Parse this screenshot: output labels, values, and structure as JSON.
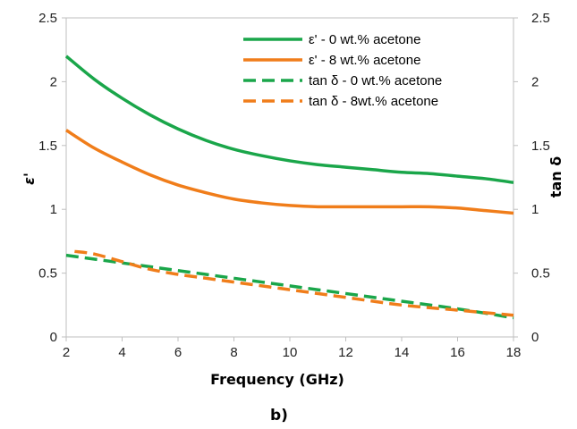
{
  "chart_data": {
    "type": "line",
    "panel_label": "b)",
    "xlabel": "Frequency (GHz)",
    "ylabel_left": "ε'",
    "ylabel_right": "tan δ",
    "xlim": [
      2,
      18
    ],
    "ylim_left": [
      0,
      2.5
    ],
    "ylim_right": [
      0,
      2.5
    ],
    "x_ticks": [
      "2",
      "4",
      "6",
      "8",
      "10",
      "12",
      "14",
      "16",
      "18"
    ],
    "y_ticks_left": [
      "0",
      "0.5",
      "1",
      "1.5",
      "2",
      "2.5"
    ],
    "y_ticks_right": [
      "0",
      "0.5",
      "1",
      "1.5",
      "2",
      "2.5"
    ],
    "grid": false,
    "legend_position": "top-right",
    "colors": {
      "green": "#1aa64a",
      "orange": "#f07d1a"
    },
    "series": [
      {
        "name": "ε' - 0 wt.% acetone",
        "axis": "left",
        "color": "#1aa64a",
        "dash": "solid",
        "x": [
          2,
          3,
          4,
          5,
          6,
          7,
          8,
          9,
          10,
          11,
          12,
          13,
          14,
          15,
          16,
          17,
          18
        ],
        "y": [
          2.2,
          2.02,
          1.87,
          1.74,
          1.63,
          1.54,
          1.47,
          1.42,
          1.38,
          1.35,
          1.33,
          1.31,
          1.29,
          1.28,
          1.26,
          1.24,
          1.21
        ]
      },
      {
        "name": "ε' - 8 wt.% acetone",
        "axis": "left",
        "color": "#f07d1a",
        "dash": "solid",
        "x": [
          2,
          3,
          4,
          5,
          6,
          7,
          8,
          9,
          10,
          11,
          12,
          13,
          14,
          15,
          16,
          17,
          18
        ],
        "y": [
          1.62,
          1.48,
          1.37,
          1.27,
          1.19,
          1.13,
          1.08,
          1.05,
          1.03,
          1.02,
          1.02,
          1.02,
          1.02,
          1.02,
          1.01,
          0.99,
          0.97
        ]
      },
      {
        "name": "tan δ - 0 wt.% acetone",
        "axis": "right",
        "color": "#1aa64a",
        "dash": "dashed",
        "x": [
          2,
          4,
          6,
          8,
          10,
          12,
          14,
          16,
          18
        ],
        "y": [
          0.64,
          0.58,
          0.52,
          0.46,
          0.4,
          0.34,
          0.28,
          0.22,
          0.15
        ]
      },
      {
        "name": "tan δ - 8wt.% acetone",
        "axis": "right",
        "color": "#f07d1a",
        "dash": "dashed",
        "x": [
          2.3,
          3,
          4,
          5,
          6,
          7,
          8,
          10,
          12,
          14,
          16,
          18
        ],
        "y": [
          0.67,
          0.65,
          0.59,
          0.53,
          0.49,
          0.46,
          0.43,
          0.37,
          0.31,
          0.25,
          0.21,
          0.17
        ]
      }
    ]
  }
}
